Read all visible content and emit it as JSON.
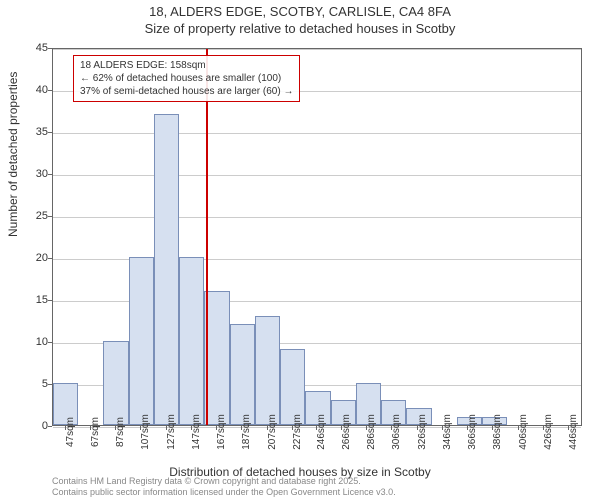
{
  "title_line1": "18, ALDERS EDGE, SCOTBY, CARLISLE, CA4 8FA",
  "title_line2": "Size of property relative to detached houses in Scotby",
  "y_axis_label": "Number of detached properties",
  "x_axis_label": "Distribution of detached houses by size in Scotby",
  "footer_line1": "Contains HM Land Registry data © Crown copyright and database right 2025.",
  "footer_line2": "Contains public sector information licensed under the Open Government Licence v3.0.",
  "callout": {
    "line1": "18 ALDERS EDGE: 158sqm",
    "line2": "← 62% of detached houses are smaller (100)",
    "line3": "37% of semi-detached houses are larger (60) →",
    "border_color": "#cc0000"
  },
  "marker": {
    "x_value": 158,
    "color": "#cc0000"
  },
  "chart": {
    "type": "histogram",
    "x_min": 37,
    "x_max": 457,
    "y_min": 0,
    "y_max": 45,
    "y_ticks": [
      0,
      5,
      10,
      15,
      20,
      25,
      30,
      35,
      40,
      45
    ],
    "x_ticks": [
      47,
      67,
      87,
      107,
      127,
      147,
      167,
      187,
      207,
      227,
      246,
      266,
      286,
      306,
      326,
      346,
      366,
      386,
      406,
      426,
      446
    ],
    "x_tick_suffix": "sqm",
    "bar_fill": "#d6e0f0",
    "bar_stroke": "#7a8fb8",
    "grid_color": "#cccccc",
    "bars": [
      {
        "x": 37,
        "w": 20,
        "h": 5
      },
      {
        "x": 57,
        "w": 20,
        "h": 0
      },
      {
        "x": 77,
        "w": 20,
        "h": 10
      },
      {
        "x": 97,
        "w": 20,
        "h": 20
      },
      {
        "x": 117,
        "w": 20,
        "h": 37
      },
      {
        "x": 137,
        "w": 20,
        "h": 20
      },
      {
        "x": 157,
        "w": 20,
        "h": 16
      },
      {
        "x": 177,
        "w": 20,
        "h": 12
      },
      {
        "x": 197,
        "w": 20,
        "h": 13
      },
      {
        "x": 217,
        "w": 20,
        "h": 9
      },
      {
        "x": 237,
        "w": 20,
        "h": 4
      },
      {
        "x": 257,
        "w": 20,
        "h": 3
      },
      {
        "x": 277,
        "w": 20,
        "h": 5
      },
      {
        "x": 297,
        "w": 20,
        "h": 3
      },
      {
        "x": 317,
        "w": 20,
        "h": 2
      },
      {
        "x": 337,
        "w": 20,
        "h": 0
      },
      {
        "x": 357,
        "w": 20,
        "h": 1
      },
      {
        "x": 377,
        "w": 20,
        "h": 1
      },
      {
        "x": 397,
        "w": 20,
        "h": 0
      },
      {
        "x": 417,
        "w": 20,
        "h": 0
      },
      {
        "x": 437,
        "w": 20,
        "h": 0
      }
    ]
  }
}
